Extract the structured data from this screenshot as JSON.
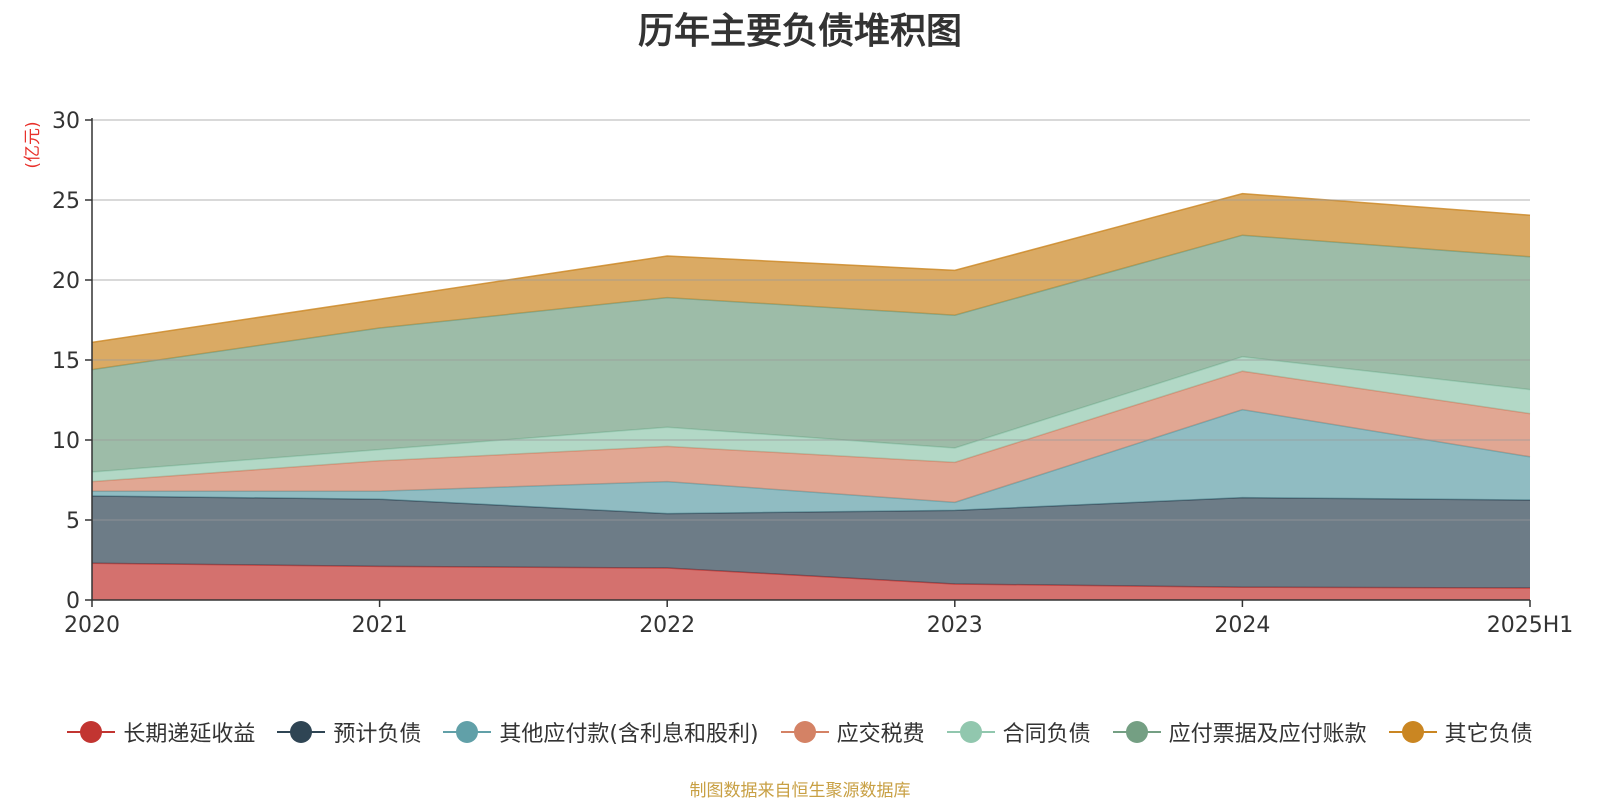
{
  "chart_data": {
    "type": "area",
    "title": "历年主要负债堆积图",
    "ylabel": "(亿元)",
    "xlabel": "",
    "categories": [
      "2020",
      "2021",
      "2022",
      "2023",
      "2024",
      "2025H1"
    ],
    "ylim": [
      0,
      30
    ],
    "yticks": [
      0,
      5,
      10,
      15,
      20,
      25,
      30
    ],
    "stacked": true,
    "grid": true,
    "legend_position": "bottom",
    "series": [
      {
        "name": "长期递延收益",
        "color": "#c23531",
        "values": [
          2.3,
          2.1,
          2.0,
          1.0,
          0.8,
          0.75
        ]
      },
      {
        "name": "预计负债",
        "color": "#2f4554",
        "values": [
          4.2,
          4.2,
          3.4,
          4.6,
          5.6,
          5.5
        ]
      },
      {
        "name": "其他应付款(含利息和股利)",
        "color": "#61a0a8",
        "values": [
          0.3,
          0.5,
          2.0,
          0.5,
          5.5,
          2.7
        ]
      },
      {
        "name": "应交税费",
        "color": "#d48265",
        "values": [
          0.6,
          1.9,
          2.2,
          2.5,
          2.4,
          2.7
        ]
      },
      {
        "name": "合同负债",
        "color": "#91c7ae",
        "values": [
          0.6,
          0.7,
          1.2,
          0.9,
          0.9,
          1.5
        ]
      },
      {
        "name": "应付票据及应付账款",
        "color": "#749f83",
        "values": [
          6.4,
          7.6,
          8.1,
          8.3,
          7.6,
          8.3
        ]
      },
      {
        "name": "其它负债",
        "color": "#ca8622",
        "values": [
          1.7,
          1.8,
          2.6,
          2.8,
          2.6,
          2.6
        ]
      }
    ]
  },
  "source_note": "制图数据来自恒生聚源数据库"
}
